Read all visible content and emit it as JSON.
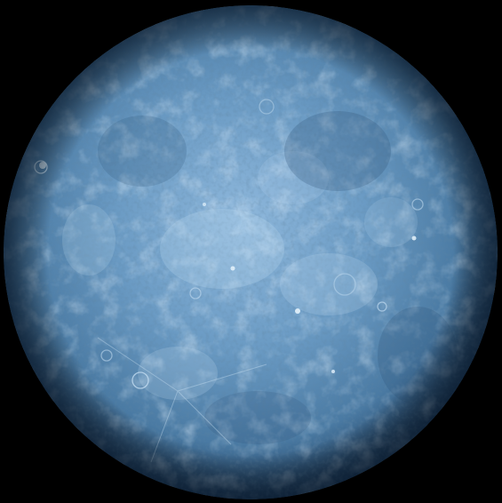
{
  "scene": {
    "subject": "planet-disc",
    "background_color": "#000000",
    "colors": {
      "limb_dark": "#1e3c5c",
      "surface_mid": "#5a8ab4",
      "surface_light": "#8fb8dc",
      "highlight": "#c8e2f6"
    }
  }
}
